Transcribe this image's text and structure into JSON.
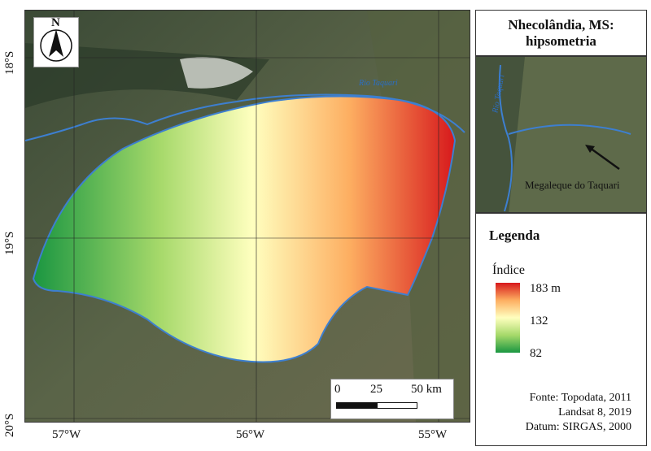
{
  "title": "Nhecolândia, MS: hipsometria",
  "map": {
    "lat_labels": [
      "18°S",
      "19°S",
      "20°S"
    ],
    "lon_labels": [
      "57°W",
      "56°W",
      "55°W"
    ],
    "north_label": "N",
    "river_label": "Rio Taquari",
    "scale_labels": [
      "0",
      "25",
      "50 km"
    ]
  },
  "inset": {
    "river_label": "Rio Taquari",
    "annotation": "Megaleque do Taquari"
  },
  "legend": {
    "title": "Legenda",
    "subtitle": "Índice",
    "max": "183 m",
    "mid": "132",
    "min": "82",
    "colors": [
      "#d7191c",
      "#fdae61",
      "#ffffbf",
      "#a6d96a",
      "#1a9641"
    ]
  },
  "source": {
    "line1": "Fonte: Topodata, 2011",
    "line2": "Landsat 8, 2019",
    "line3": "Datum: SIRGAS, 2000"
  }
}
